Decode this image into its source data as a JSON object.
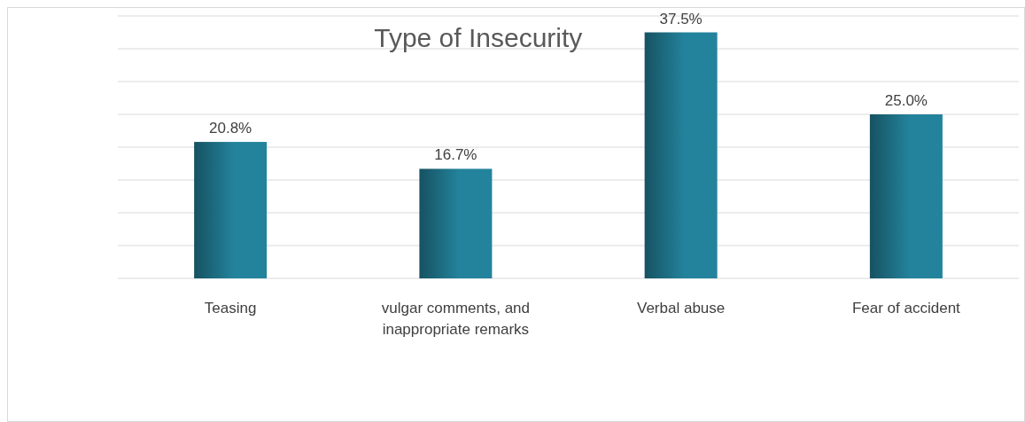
{
  "chart_data": {
    "type": "bar",
    "title": "Type of Insecurity",
    "categories": [
      "Teasing",
      "vulgar comments, and inappropriate remarks",
      "Verbal abuse",
      "Fear of accident"
    ],
    "values": [
      20.8,
      16.7,
      37.5,
      25.0
    ],
    "value_labels": [
      "20.8%",
      "16.7%",
      "37.5%",
      "25.0%"
    ],
    "color": "#23839c",
    "ylim": [
      0,
      40
    ],
    "yticks": [
      {
        "value": 0,
        "label": null
      },
      {
        "value": 5,
        "label": null
      },
      {
        "value": 10,
        "label": null
      },
      {
        "value": 15,
        "label": null
      },
      {
        "value": 20,
        "label": null
      },
      {
        "value": 25,
        "label": null
      },
      {
        "value": 30,
        "label": null
      },
      {
        "value": 35,
        "label": null
      },
      {
        "value": 40,
        "label": null
      }
    ],
    "tick_labels": "x",
    "grid": "y"
  }
}
